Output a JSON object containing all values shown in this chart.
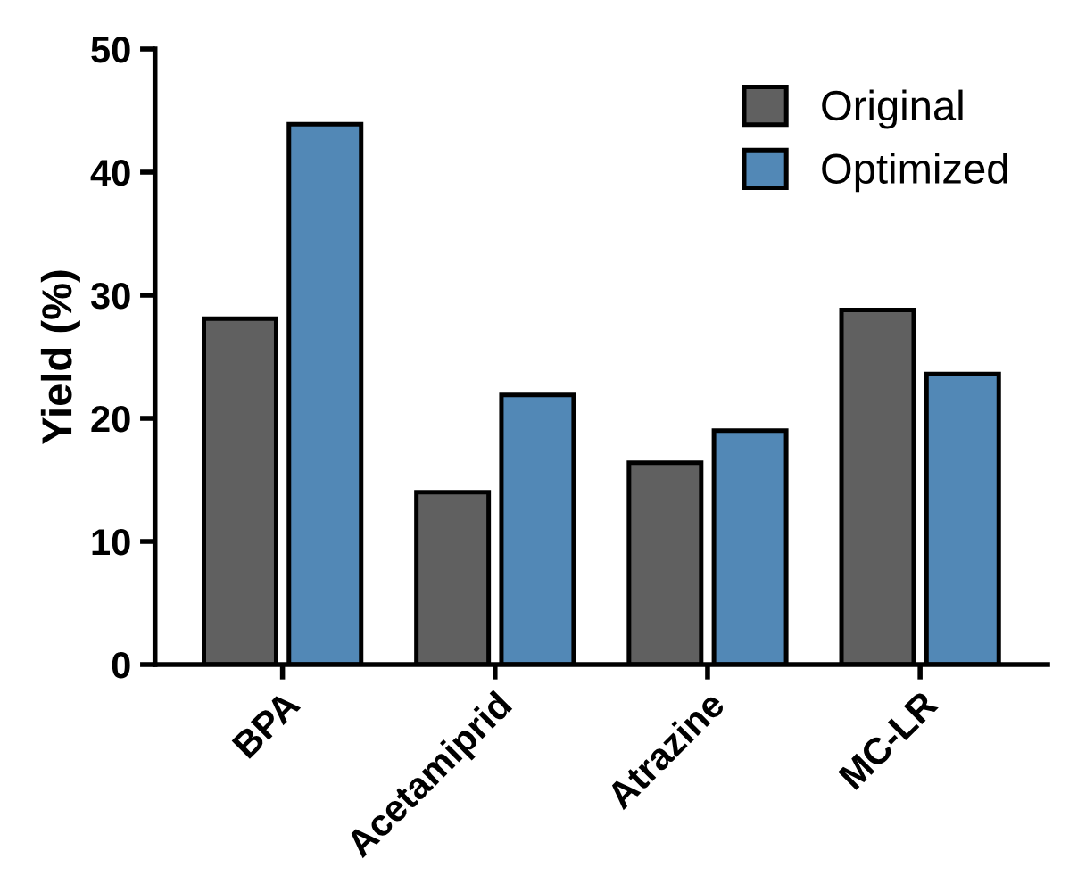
{
  "chart_data": {
    "type": "bar",
    "ylabel": "Yield (%)",
    "categories": [
      "BPA",
      "Acetamiprid",
      "Atrazine",
      "MC-LR"
    ],
    "series": [
      {
        "name": "Original",
        "color": "#606060",
        "values": [
          28.1,
          14.0,
          16.4,
          28.8
        ]
      },
      {
        "name": "Optimized",
        "color": "#5288b6",
        "values": [
          43.9,
          21.9,
          19.0,
          23.6
        ]
      }
    ],
    "ylim": [
      0,
      50
    ],
    "yticks": [
      0,
      10,
      20,
      30,
      40,
      50
    ],
    "grid": false,
    "legend": "top right"
  }
}
